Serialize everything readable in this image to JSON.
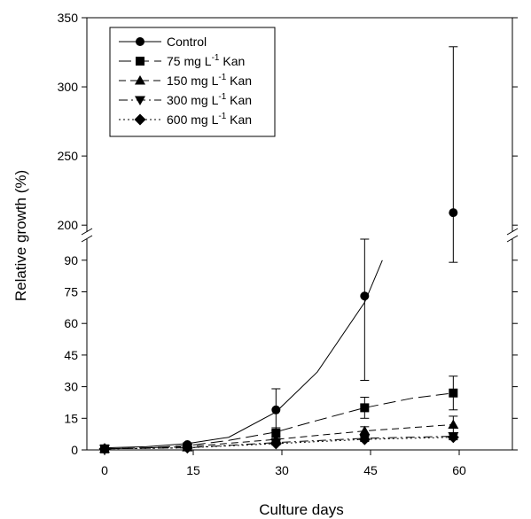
{
  "chart_data": {
    "type": "line",
    "xlabel": "Culture days",
    "ylabel": "Relative growth (%)",
    "xlim": [
      -3,
      69
    ],
    "x_ticks": [
      0,
      15,
      30,
      45,
      60
    ],
    "y_axis_segments": [
      {
        "range": [
          0,
          100
        ],
        "ticks": [
          0,
          15,
          30,
          45,
          60,
          75,
          90
        ]
      },
      {
        "range": [
          195,
          350
        ],
        "ticks": [
          200,
          250,
          300,
          350
        ]
      }
    ],
    "axis_break": "double slash on both y axes",
    "legend_position": "top-left",
    "legend": [
      {
        "key": "control",
        "text": "Control"
      },
      {
        "key": "kan75",
        "text": "75 mg  L-1 Kan",
        "pre": "75 mg  L",
        "sup": "-1",
        "post": " Kan"
      },
      {
        "key": "kan150",
        "text": "150 mg L-1 Kan",
        "pre": "150 mg L",
        "sup": "-1",
        "post": " Kan"
      },
      {
        "key": "kan300",
        "text": "300 mg L-1 Kan",
        "pre": "300 mg L",
        "sup": "-1",
        "post": " Kan"
      },
      {
        "key": "kan600",
        "text": "600 mg L-1 Kan",
        "pre": "600 mg L",
        "sup": "-1",
        "post": " Kan"
      }
    ],
    "series": [
      {
        "key": "control",
        "marker": "circle",
        "line": "solid",
        "color": "#000000",
        "x": [
          0,
          14,
          29,
          44,
          59
        ],
        "y": [
          0.5,
          2.5,
          19,
          73,
          209
        ],
        "err": [
          0.5,
          0.8,
          10,
          40,
          120
        ],
        "curve": {
          "x": [
            0,
            7,
            14,
            21,
            29,
            36,
            44,
            47,
            49,
            52,
            55,
            59
          ],
          "y": [
            1,
            1.5,
            3,
            6,
            18,
            37,
            70,
            90,
            115,
            140,
            170,
            200
          ]
        }
      },
      {
        "key": "kan75",
        "marker": "square",
        "line": "long-dash",
        "color": "#000000",
        "x": [
          0,
          14,
          29,
          44,
          59
        ],
        "y": [
          0.5,
          1.5,
          8,
          20,
          27
        ],
        "err": [
          0.3,
          0.5,
          2.5,
          5,
          8
        ],
        "curve": {
          "x": [
            0,
            7,
            14,
            21,
            29,
            36,
            44,
            52,
            59
          ],
          "y": [
            0.5,
            1,
            2,
            4.5,
            8.5,
            14,
            20,
            24.5,
            27
          ]
        }
      },
      {
        "key": "kan150",
        "marker": "triangle-up",
        "line": "dash",
        "color": "#000000",
        "x": [
          0,
          14,
          29,
          44,
          59
        ],
        "y": [
          0.5,
          1.2,
          5,
          9,
          12
        ],
        "err": [
          0.3,
          0.4,
          1.2,
          2,
          4
        ],
        "curve": {
          "x": [
            0,
            14,
            29,
            44,
            59
          ],
          "y": [
            0.5,
            1.5,
            5,
            9,
            12
          ]
        }
      },
      {
        "key": "kan300",
        "marker": "triangle-down",
        "line": "dash-dot",
        "color": "#000000",
        "x": [
          0,
          14,
          29,
          44,
          59
        ],
        "y": [
          0.5,
          1,
          3.5,
          5.5,
          6.5
        ],
        "err": [
          0.2,
          0.3,
          0.8,
          1,
          1.5
        ],
        "curve": {
          "x": [
            0,
            14,
            29,
            44,
            59
          ],
          "y": [
            0.5,
            1,
            3.5,
            5.5,
            6.5
          ]
        }
      },
      {
        "key": "kan600",
        "marker": "diamond",
        "line": "dotted",
        "color": "#000000",
        "x": [
          0,
          14,
          29,
          44,
          59
        ],
        "y": [
          0.5,
          1,
          3,
          5,
          6
        ],
        "err": [
          0.2,
          0.3,
          0.6,
          1,
          1.2
        ],
        "curve": {
          "x": [
            0,
            14,
            29,
            44,
            59
          ],
          "y": [
            0.5,
            1,
            3,
            5,
            6
          ]
        }
      }
    ]
  }
}
